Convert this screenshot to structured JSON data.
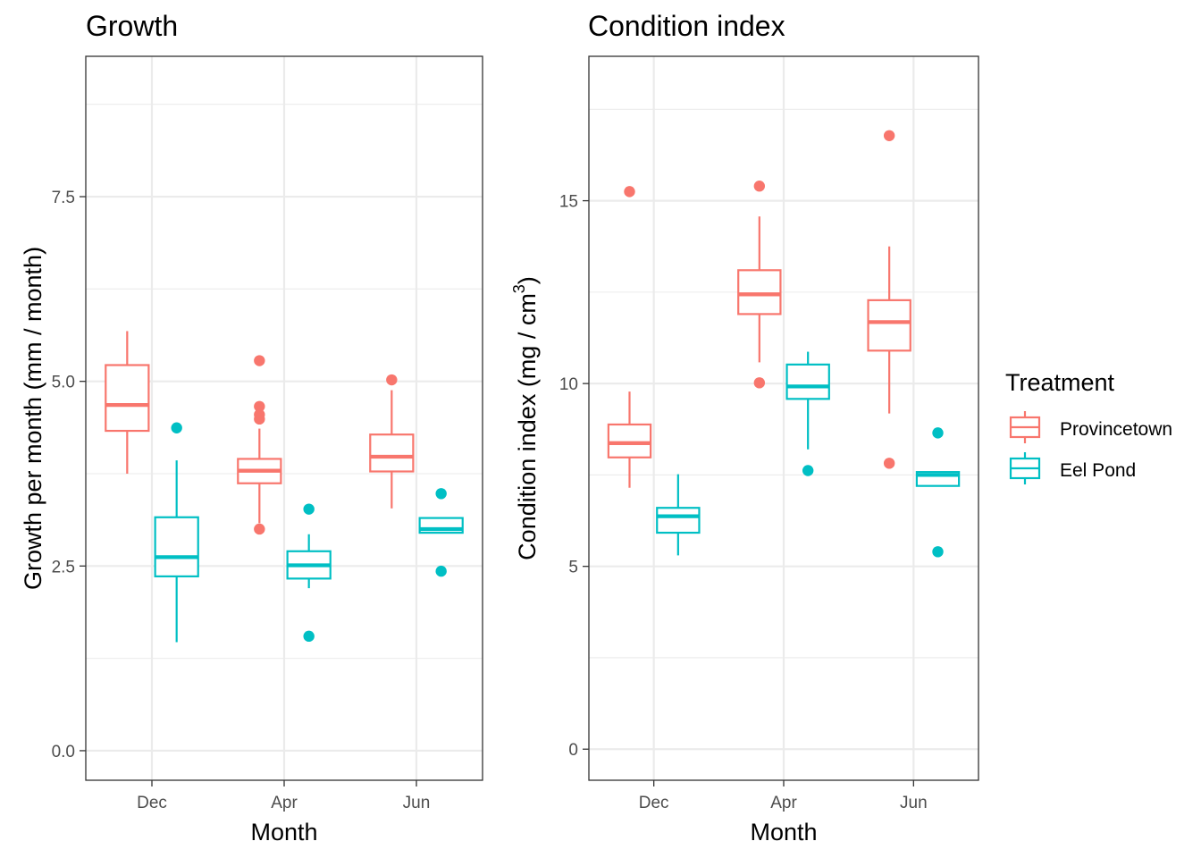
{
  "colors": {
    "provincetown": "#F8766D",
    "eel_pond": "#00BFC4",
    "grid": "#EBEBEB",
    "axis_text": "#4D4D4D"
  },
  "legend": {
    "title": "Treatment",
    "items": [
      {
        "label": "Provincetown",
        "color": "#F8766D"
      },
      {
        "label": "Eel Pond",
        "color": "#00BFC4"
      }
    ]
  },
  "chart_data": [
    {
      "type": "box",
      "title": "Growth",
      "xlabel": "Month",
      "ylabel": "Growth per month (mm / month)",
      "categories": [
        "Dec",
        "Apr",
        "Jun"
      ],
      "ylim": [
        -0.4,
        9.4
      ],
      "yticks": [
        0,
        2.5,
        5,
        7.5
      ],
      "ytick_labels": [
        "0.0",
        "2.5",
        "5.0",
        "7.5"
      ],
      "grid": true,
      "series": [
        {
          "name": "Provincetown",
          "color": "#F8766D",
          "boxes": [
            {
              "whisker_low": 3.75,
              "q1": 4.33,
              "median": 4.68,
              "q3": 5.22,
              "whisker_high": 5.68,
              "outliers": []
            },
            {
              "whisker_low": 3.08,
              "q1": 3.62,
              "median": 3.79,
              "q3": 3.95,
              "whisker_high": 4.36,
              "outliers": [
                5.28,
                4.66,
                4.55,
                4.49,
                3.0
              ]
            },
            {
              "whisker_low": 3.28,
              "q1": 3.78,
              "median": 3.98,
              "q3": 4.28,
              "whisker_high": 4.88,
              "outliers": [
                5.02
              ]
            }
          ]
        },
        {
          "name": "Eel Pond",
          "color": "#00BFC4",
          "boxes": [
            {
              "whisker_low": 1.47,
              "q1": 2.36,
              "median": 2.62,
              "q3": 3.16,
              "whisker_high": 3.93,
              "outliers": [
                4.37
              ]
            },
            {
              "whisker_low": 2.2,
              "q1": 2.33,
              "median": 2.51,
              "q3": 2.7,
              "whisker_high": 2.93,
              "outliers": [
                3.27,
                1.55
              ]
            },
            {
              "whisker_low": 2.95,
              "q1": 2.95,
              "median": 3.0,
              "q3": 3.15,
              "whisker_high": 3.15,
              "outliers": [
                3.48,
                2.43
              ]
            }
          ]
        }
      ]
    },
    {
      "type": "box",
      "title": "Condition index",
      "xlabel": "Month",
      "ylabel": "Condition index (mg / cm",
      "ylabel_sup": "3",
      "ylabel_suffix": ")",
      "categories": [
        "Dec",
        "Apr",
        "Jun"
      ],
      "ylim": [
        -0.85,
        18.95
      ],
      "yticks": [
        0,
        5,
        10,
        15
      ],
      "ytick_labels": [
        "0",
        "5",
        "10",
        "15"
      ],
      "grid": true,
      "series": [
        {
          "name": "Provincetown",
          "color": "#F8766D",
          "boxes": [
            {
              "whisker_low": 7.15,
              "q1": 7.98,
              "median": 8.37,
              "q3": 8.88,
              "whisker_high": 9.78,
              "outliers": [
                15.25
              ]
            },
            {
              "whisker_low": 10.58,
              "q1": 11.9,
              "median": 12.44,
              "q3": 13.1,
              "whisker_high": 14.57,
              "outliers": [
                15.4,
                10.02
              ]
            },
            {
              "whisker_low": 9.18,
              "q1": 10.9,
              "median": 11.68,
              "q3": 12.28,
              "whisker_high": 13.75,
              "outliers": [
                16.78,
                7.82
              ]
            }
          ]
        },
        {
          "name": "Eel Pond",
          "color": "#00BFC4",
          "boxes": [
            {
              "whisker_low": 5.3,
              "q1": 5.92,
              "median": 6.37,
              "q3": 6.6,
              "whisker_high": 7.52,
              "outliers": []
            },
            {
              "whisker_low": 8.2,
              "q1": 9.58,
              "median": 9.92,
              "q3": 10.52,
              "whisker_high": 10.87,
              "outliers": [
                7.62
              ]
            },
            {
              "whisker_low": 7.2,
              "q1": 7.2,
              "median": 7.5,
              "q3": 7.58,
              "whisker_high": 7.58,
              "outliers": [
                8.65,
                5.4
              ]
            }
          ]
        }
      ]
    }
  ]
}
